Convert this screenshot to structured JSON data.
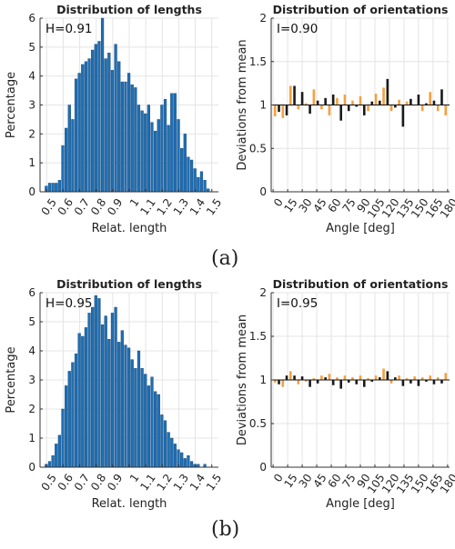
{
  "panel_labels": [
    "(a)",
    "(b)"
  ],
  "chart_data": [
    {
      "type": "bar",
      "title": "Distribution of lengths",
      "annotation": "H=0.91",
      "xlabel": "Relat. length",
      "ylabel": "Percentage",
      "xlim": [
        0.46,
        1.54
      ],
      "ylim": [
        0,
        6
      ],
      "xticks": [
        "0.5",
        "0.6",
        "0.7",
        "0.8",
        "0.9",
        "1",
        "1.1",
        "1.2",
        "1.3",
        "1.4",
        "1.5"
      ],
      "yticks": [
        "0",
        "1",
        "2",
        "3",
        "4",
        "5",
        "6"
      ],
      "grid": true,
      "bar_color": "#1f6fb4",
      "bin_width": 0.02,
      "x": [
        0.5,
        0.52,
        0.54,
        0.56,
        0.58,
        0.6,
        0.62,
        0.64,
        0.66,
        0.68,
        0.7,
        0.72,
        0.74,
        0.76,
        0.78,
        0.8,
        0.82,
        0.84,
        0.86,
        0.88,
        0.9,
        0.92,
        0.94,
        0.96,
        0.98,
        1.0,
        1.02,
        1.04,
        1.06,
        1.08,
        1.1,
        1.12,
        1.14,
        1.16,
        1.18,
        1.2,
        1.22,
        1.24,
        1.26,
        1.28,
        1.3,
        1.32,
        1.34,
        1.36,
        1.38,
        1.4,
        1.42,
        1.44,
        1.46,
        1.48
      ],
      "values": [
        0.2,
        0.3,
        0.3,
        0.3,
        0.4,
        1.6,
        2.2,
        3.0,
        2.5,
        3.9,
        4.1,
        4.4,
        4.5,
        4.6,
        4.9,
        5.1,
        5.2,
        6.0,
        4.6,
        4.8,
        4.2,
        5.1,
        4.5,
        3.8,
        3.8,
        4.1,
        3.7,
        3.6,
        3.0,
        2.8,
        2.7,
        3.0,
        2.4,
        2.1,
        2.5,
        3.0,
        3.2,
        2.3,
        3.4,
        3.4,
        2.5,
        1.5,
        2.0,
        1.2,
        1.1,
        0.8,
        0.5,
        0.7,
        0.4,
        0.1
      ]
    },
    {
      "type": "bar",
      "title": "Distribution of orientations",
      "annotation": "I=0.90",
      "xlabel": "Angle [deg]",
      "ylabel": "Deviations from mean",
      "xlim": [
        -2,
        182
      ],
      "ylim": [
        0,
        2
      ],
      "baseline": 1,
      "xticks": [
        "0",
        "15",
        "30",
        "45",
        "60",
        "75",
        "90",
        "105",
        "120",
        "135",
        "150",
        "165",
        "180"
      ],
      "yticks": [
        "0",
        "0.5",
        "1",
        "1.5",
        "2"
      ],
      "grid": true,
      "bar_colors": [
        "#f4a040",
        "#1a1a1a"
      ],
      "x": [
        2,
        6,
        10,
        14,
        18,
        22,
        26,
        30,
        34,
        38,
        42,
        46,
        50,
        54,
        58,
        62,
        66,
        70,
        74,
        78,
        82,
        86,
        90,
        94,
        98,
        102,
        106,
        110,
        114,
        118,
        122,
        126,
        130,
        134,
        138,
        142,
        146,
        150,
        154,
        158,
        162,
        166,
        170,
        174,
        178
      ],
      "values": [
        0.87,
        0.92,
        0.85,
        0.88,
        1.22,
        1.22,
        0.95,
        1.15,
        1.02,
        0.9,
        1.18,
        1.05,
        0.95,
        1.08,
        0.88,
        1.12,
        1.08,
        0.82,
        1.12,
        0.93,
        1.05,
        0.98,
        1.1,
        0.88,
        0.93,
        1.04,
        1.13,
        1.05,
        1.2,
        1.3,
        0.93,
        0.97,
        1.06,
        0.75,
        1.04,
        1.07,
        1.0,
        1.12,
        0.93,
        1.02,
        1.15,
        1.05,
        0.93,
        1.18,
        0.88
      ]
    },
    {
      "type": "bar",
      "title": "Distribution of lengths",
      "annotation": "H=0.95",
      "xlabel": "Relat. length",
      "ylabel": "Percentage",
      "xlim": [
        0.46,
        1.54
      ],
      "ylim": [
        0,
        6
      ],
      "xticks": [
        "0.5",
        "0.6",
        "0.7",
        "0.8",
        "0.9",
        "1",
        "1.1",
        "1.2",
        "1.3",
        "1.4",
        "1.5"
      ],
      "yticks": [
        "0",
        "1",
        "2",
        "3",
        "4",
        "5",
        "6"
      ],
      "grid": true,
      "bar_color": "#1f6fb4",
      "bin_width": 0.02,
      "x": [
        0.5,
        0.52,
        0.54,
        0.56,
        0.58,
        0.6,
        0.62,
        0.64,
        0.66,
        0.68,
        0.7,
        0.72,
        0.74,
        0.76,
        0.78,
        0.8,
        0.82,
        0.84,
        0.86,
        0.88,
        0.9,
        0.92,
        0.94,
        0.96,
        0.98,
        1.0,
        1.02,
        1.04,
        1.06,
        1.08,
        1.1,
        1.12,
        1.14,
        1.16,
        1.18,
        1.2,
        1.22,
        1.24,
        1.26,
        1.28,
        1.3,
        1.32,
        1.34,
        1.36,
        1.38,
        1.4,
        1.42,
        1.44,
        1.46,
        1.48
      ],
      "values": [
        0.1,
        0.2,
        0.4,
        0.8,
        1.1,
        2.0,
        2.8,
        3.3,
        3.6,
        3.9,
        4.6,
        4.5,
        4.8,
        5.3,
        5.5,
        5.9,
        5.8,
        4.9,
        5.2,
        4.4,
        5.3,
        5.5,
        4.3,
        4.7,
        4.2,
        4.1,
        3.7,
        3.4,
        4.0,
        3.4,
        3.2,
        2.8,
        3.1,
        2.6,
        2.5,
        1.8,
        1.6,
        1.2,
        1.0,
        0.8,
        0.6,
        0.5,
        0.3,
        0.4,
        0.2,
        0.1,
        0.1,
        0.0,
        0.1,
        0.0
      ]
    },
    {
      "type": "bar",
      "title": "Distribution of orientations",
      "annotation": "I=0.95",
      "xlabel": "Angle [deg]",
      "ylabel": "Deviations from mean",
      "xlim": [
        -2,
        182
      ],
      "ylim": [
        0,
        2
      ],
      "baseline": 1,
      "xticks": [
        "0",
        "15",
        "30",
        "45",
        "60",
        "75",
        "90",
        "105",
        "120",
        "135",
        "150",
        "165",
        "180"
      ],
      "yticks": [
        "0",
        "0.5",
        "1",
        "1.5",
        "2"
      ],
      "grid": true,
      "bar_colors": [
        "#f4a040",
        "#1a1a1a"
      ],
      "x": [
        2,
        6,
        10,
        14,
        18,
        22,
        26,
        30,
        34,
        38,
        42,
        46,
        50,
        54,
        58,
        62,
        66,
        70,
        74,
        78,
        82,
        86,
        90,
        94,
        98,
        102,
        106,
        110,
        114,
        118,
        122,
        126,
        130,
        134,
        138,
        142,
        146,
        150,
        154,
        158,
        162,
        166,
        170,
        174,
        178
      ],
      "values": [
        0.97,
        0.95,
        0.92,
        1.05,
        1.1,
        1.05,
        0.95,
        1.04,
        0.98,
        0.92,
        1.02,
        0.96,
        1.05,
        1.03,
        1.07,
        0.94,
        1.03,
        0.9,
        1.05,
        0.97,
        1.03,
        0.95,
        1.05,
        0.92,
        1.02,
        0.98,
        1.05,
        1.03,
        1.13,
        1.1,
        0.96,
        1.03,
        1.05,
        0.93,
        1.02,
        0.96,
        1.04,
        0.93,
        1.03,
        0.98,
        1.05,
        0.95,
        1.03,
        0.96,
        1.08
      ]
    }
  ]
}
